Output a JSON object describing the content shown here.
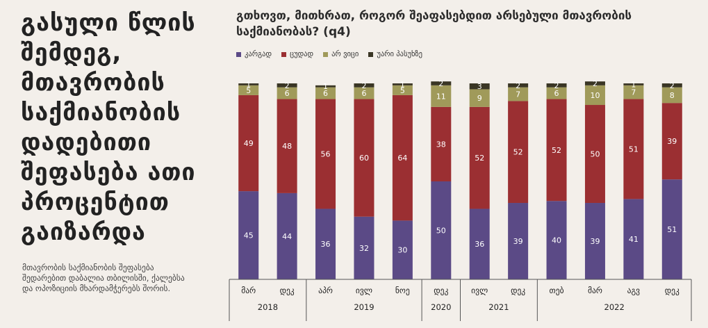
{
  "headline": "გასული წლის შემდეგ, მთავრობის საქმიანობის დადებითი შეფასება ათი პროცენტით გაიზარდა",
  "sidenote": "მთავრობის საქმიანობის შეფასება შედარებით დაბალია თბილისში, ქალებსა და ოპოზიციის მხარდამჭერებს შორის.",
  "chart_data": {
    "type": "bar",
    "stacked": true,
    "title": "გთხოვთ, მითხრათ, როგორ შეაფასებდით არსებული მთავრობის საქმიანობას? (q4)",
    "categories": [
      "მარ",
      "დეკ",
      "აპრ",
      "ივლ",
      "ნოე",
      "დეკ",
      "ივლ",
      "დეკ",
      "თებ",
      "მარ",
      "აგვ",
      "დეკ"
    ],
    "years": [
      {
        "label": "2018",
        "span": [
          0,
          1
        ]
      },
      {
        "label": "2019",
        "span": [
          2,
          4
        ]
      },
      {
        "label": "2020",
        "span": [
          5,
          5
        ]
      },
      {
        "label": "2021",
        "span": [
          6,
          7
        ]
      },
      {
        "label": "2022",
        "span": [
          8,
          11
        ]
      }
    ],
    "series": [
      {
        "name": "კარგად",
        "color": "#5b4a86",
        "label_color": "#ffffff",
        "values": [
          45,
          44,
          36,
          32,
          30,
          50,
          36,
          39,
          40,
          39,
          41,
          51
        ]
      },
      {
        "name": "ცუდად",
        "color": "#9b2f32",
        "label_color": "#ffffff",
        "values": [
          49,
          48,
          56,
          60,
          64,
          38,
          52,
          52,
          52,
          50,
          51,
          39
        ]
      },
      {
        "name": "არ ვიცი",
        "color": "#a09a5a",
        "label_color": "#ffffff",
        "values": [
          5,
          6,
          6,
          6,
          5,
          11,
          9,
          7,
          6,
          10,
          7,
          8
        ]
      },
      {
        "name": "უარი პასუხზე",
        "color": "#3a3625",
        "label_color": "#ffffff",
        "values": [
          1,
          2,
          1,
          2,
          1,
          2,
          3,
          2,
          2,
          2,
          1,
          2
        ]
      }
    ],
    "ylim": [
      0,
      100
    ],
    "legend_position": "top-left",
    "grid": false
  }
}
